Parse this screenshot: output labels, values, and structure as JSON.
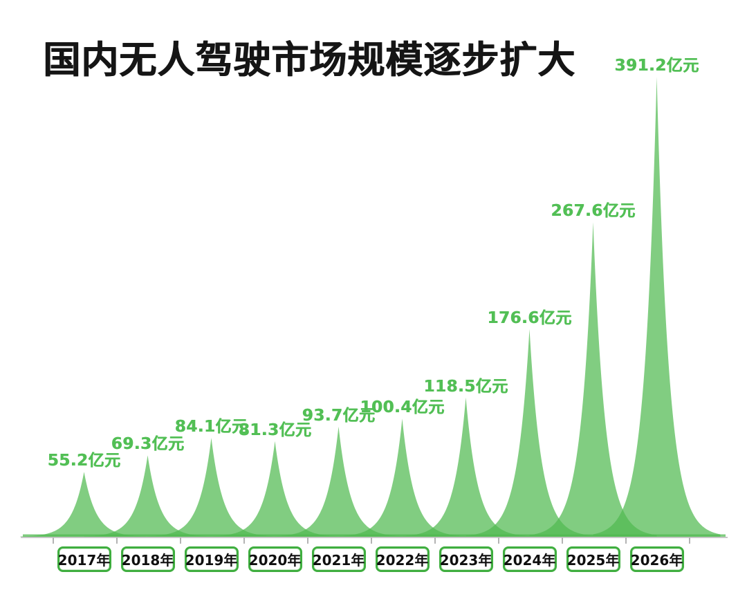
{
  "title": "国内无人驾驶市场规模逐步扩大",
  "chart_data": {
    "type": "area",
    "subtype": "spike-peaks",
    "title": "国内无人驾驶市场规模逐步扩大",
    "categories": [
      "2017年",
      "2018年",
      "2019年",
      "2020年",
      "2021年",
      "2022年",
      "2023年",
      "2024年",
      "2025年",
      "2026年"
    ],
    "values": [
      55.2,
      69.3,
      84.1,
      81.3,
      93.7,
      100.4,
      118.5,
      176.6,
      267.6,
      391.2
    ],
    "unit": "亿元",
    "value_labels": [
      "55.2亿元",
      "69.3亿元",
      "84.1亿元",
      "81.3亿元",
      "93.7亿元",
      "100.4亿元",
      "118.5亿元",
      "176.6亿元",
      "267.6亿元",
      "391.2亿元"
    ],
    "xlabel": "",
    "ylabel": "",
    "ylim": [
      0,
      391.2
    ],
    "grid": false,
    "legend": false,
    "colors": {
      "peak_fill": "#50BA50",
      "peak_fill_opacity": 0.72,
      "value_label_text": "#52BF55",
      "year_box_border": "#3FAE3F",
      "year_box_text": "#0F0F0F",
      "axis_line": "#C7C7C7",
      "tick_mark": "#B3B3B3",
      "title_text": "#151515",
      "background": "#FFFFFF"
    }
  }
}
